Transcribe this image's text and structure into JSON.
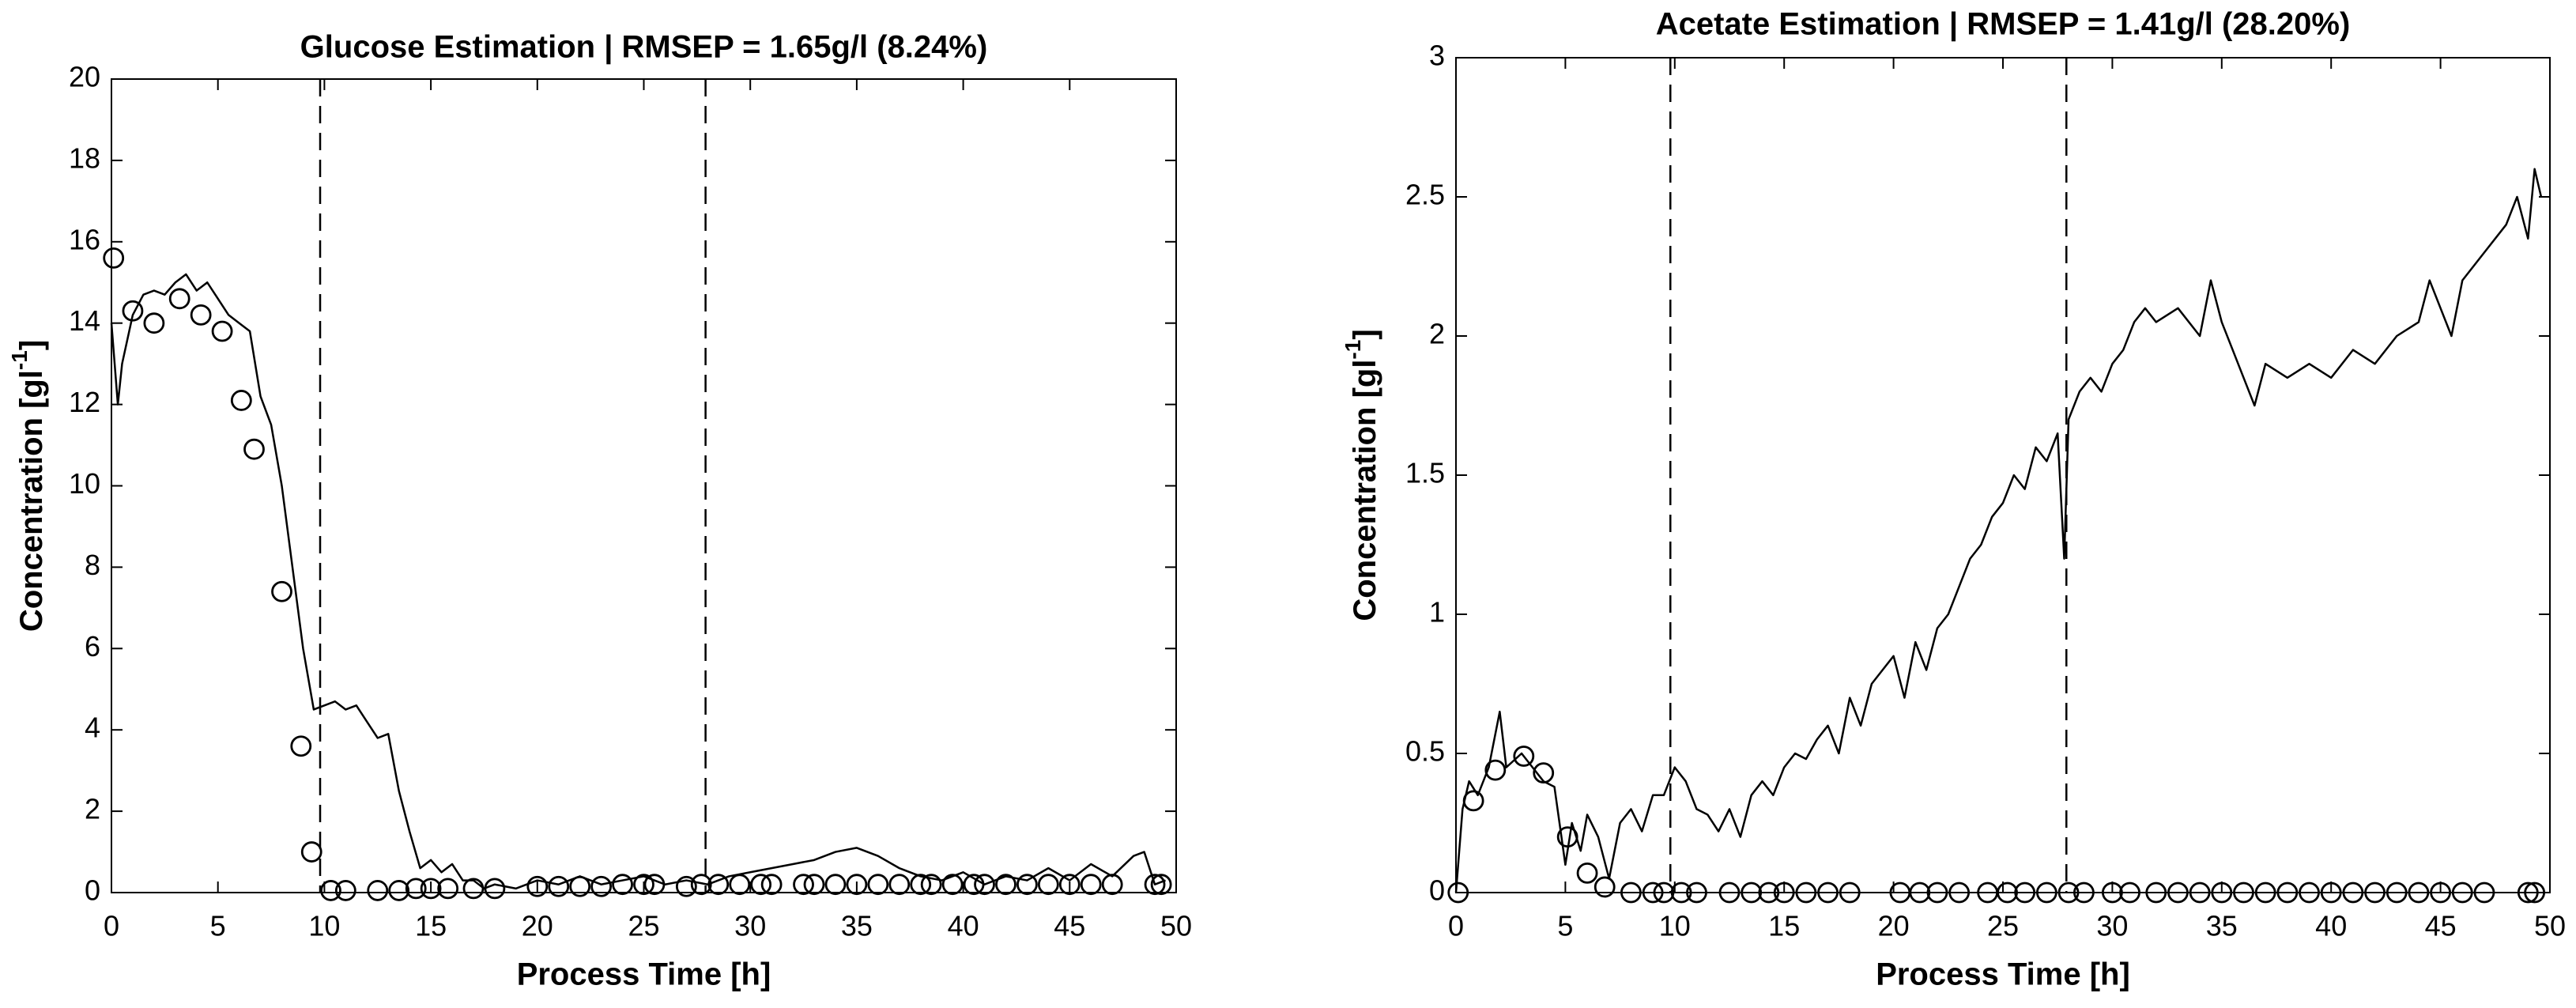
{
  "chart_data": [
    {
      "type": "line",
      "title": "Glucose Estimation | RMSEP = 1.65g/l (8.24%)",
      "xlabel": "Process Time [h]",
      "ylabel": [
        "Concentration [gl",
        "-1",
        "]"
      ],
      "xlim": [
        0,
        50
      ],
      "ylim": [
        0,
        20
      ],
      "xticks": [
        0,
        5,
        10,
        15,
        20,
        25,
        30,
        35,
        40,
        45,
        50
      ],
      "yticks": [
        0,
        2,
        4,
        6,
        8,
        10,
        12,
        14,
        16,
        18,
        20
      ],
      "vlines": [
        9.8,
        27.9
      ],
      "series": [
        {
          "type": "line",
          "color": "#000000",
          "x": [
            0,
            0.3,
            0.5,
            1,
            1.5,
            2,
            2.5,
            3,
            3.5,
            4,
            4.5,
            5,
            5.5,
            6,
            6.5,
            7,
            7.5,
            8,
            8.5,
            9,
            9.5,
            10,
            10.5,
            11,
            11.5,
            12,
            12.5,
            13,
            13.5,
            14,
            14.5,
            15,
            15.5,
            16,
            16.5,
            17,
            17.5,
            18,
            19,
            20,
            21,
            22,
            23,
            24,
            25,
            26,
            27,
            28,
            29,
            30,
            31,
            32,
            33,
            34,
            35,
            36,
            37,
            38,
            39,
            40,
            41,
            42,
            43,
            44,
            45,
            46,
            47,
            48,
            48.5,
            49,
            49.5
          ],
          "values": [
            14,
            12,
            13,
            14.2,
            14.7,
            14.8,
            14.7,
            15,
            15.2,
            14.8,
            15,
            14.6,
            14.2,
            14,
            13.8,
            12.2,
            11.5,
            10,
            8,
            6,
            4.5,
            4.6,
            4.7,
            4.5,
            4.6,
            4.2,
            3.8,
            3.9,
            2.5,
            1.5,
            0.6,
            0.8,
            0.5,
            0.7,
            0.3,
            0.3,
            0.1,
            0.2,
            0.1,
            0.3,
            0.2,
            0.4,
            0.2,
            0.3,
            0.4,
            0.2,
            0.3,
            0.2,
            0.4,
            0.5,
            0.6,
            0.7,
            0.8,
            1.0,
            1.1,
            0.9,
            0.6,
            0.4,
            0.3,
            0.5,
            0.2,
            0.4,
            0.3,
            0.6,
            0.3,
            0.7,
            0.4,
            0.9,
            1.0,
            0.2,
            0.3
          ]
        },
        {
          "type": "scatter",
          "color": "#000000",
          "x": [
            0.1,
            1,
            2,
            3.2,
            4.2,
            5.2,
            6.1,
            6.7,
            8,
            8.9,
            9.4,
            10.3,
            11,
            12.5,
            13.5,
            14.3,
            15,
            15.8,
            17,
            18,
            20,
            21,
            22,
            23,
            24,
            25,
            25.5,
            27,
            27.7,
            28.5,
            29.5,
            30.5,
            31,
            32.5,
            33,
            34,
            35,
            36,
            37,
            38,
            38.5,
            39.5,
            40.5,
            41,
            42,
            43,
            44,
            45,
            46,
            47,
            49,
            49.3
          ],
          "values": [
            15.6,
            14.3,
            14.0,
            14.6,
            14.2,
            13.8,
            12.1,
            10.9,
            7.4,
            3.6,
            1.0,
            0.05,
            0.05,
            0.05,
            0.05,
            0.1,
            0.1,
            0.1,
            0.1,
            0.1,
            0.15,
            0.15,
            0.15,
            0.15,
            0.2,
            0.2,
            0.2,
            0.15,
            0.2,
            0.2,
            0.2,
            0.2,
            0.2,
            0.2,
            0.2,
            0.2,
            0.2,
            0.2,
            0.2,
            0.2,
            0.2,
            0.2,
            0.2,
            0.2,
            0.2,
            0.2,
            0.2,
            0.2,
            0.2,
            0.2,
            0.2,
            0.2
          ]
        }
      ]
    },
    {
      "type": "line",
      "title": "Acetate Estimation | RMSEP = 1.41g/l (28.20%)",
      "xlabel": "Process Time [h]",
      "ylabel": [
        "Concentration [gl",
        "-1",
        "]"
      ],
      "xlim": [
        0,
        50
      ],
      "ylim": [
        0,
        3
      ],
      "xticks": [
        0,
        5,
        10,
        15,
        20,
        25,
        30,
        35,
        40,
        45,
        50
      ],
      "yticks": [
        0,
        0.5,
        1,
        1.5,
        2,
        2.5,
        3
      ],
      "vlines": [
        9.8,
        27.9
      ],
      "series": [
        {
          "type": "line",
          "color": "#000000",
          "x": [
            0,
            0.3,
            0.6,
            1,
            1.5,
            2,
            2.3,
            3,
            3.5,
            4,
            4.5,
            5,
            5.3,
            5.7,
            6,
            6.5,
            7,
            7.5,
            8,
            8.5,
            9,
            9.5,
            10,
            10.5,
            11,
            11.5,
            12,
            12.5,
            13,
            13.5,
            14,
            14.5,
            15,
            15.5,
            16,
            16.5,
            17,
            17.5,
            18,
            18.5,
            19,
            19.5,
            20,
            20.5,
            21,
            21.5,
            22,
            22.5,
            23,
            23.5,
            24,
            24.5,
            25,
            25.5,
            26,
            26.5,
            27,
            27.5,
            27.8,
            28,
            28.5,
            29,
            29.5,
            30,
            30.5,
            31,
            31.5,
            32,
            33,
            34,
            34.5,
            35,
            35.5,
            36,
            36.5,
            37,
            38,
            39,
            40,
            41,
            42,
            43,
            44,
            44.5,
            45,
            45.5,
            46,
            47,
            48,
            48.5,
            49,
            49.3,
            49.6
          ],
          "values": [
            0,
            0.3,
            0.4,
            0.35,
            0.45,
            0.65,
            0.45,
            0.5,
            0.45,
            0.4,
            0.38,
            0.1,
            0.25,
            0.15,
            0.28,
            0.2,
            0.05,
            0.25,
            0.3,
            0.22,
            0.35,
            0.35,
            0.45,
            0.4,
            0.3,
            0.28,
            0.22,
            0.3,
            0.2,
            0.35,
            0.4,
            0.35,
            0.45,
            0.5,
            0.48,
            0.55,
            0.6,
            0.5,
            0.7,
            0.6,
            0.75,
            0.8,
            0.85,
            0.7,
            0.9,
            0.8,
            0.95,
            1.0,
            1.1,
            1.2,
            1.25,
            1.35,
            1.4,
            1.5,
            1.45,
            1.6,
            1.55,
            1.65,
            1.2,
            1.7,
            1.8,
            1.85,
            1.8,
            1.9,
            1.95,
            2.05,
            2.1,
            2.05,
            2.1,
            2.0,
            2.2,
            2.05,
            1.95,
            1.85,
            1.75,
            1.9,
            1.85,
            1.9,
            1.85,
            1.95,
            1.9,
            2.0,
            2.05,
            2.2,
            2.1,
            2.0,
            2.2,
            2.3,
            2.4,
            2.5,
            2.35,
            2.6,
            2.5
          ]
        },
        {
          "type": "scatter",
          "color": "#000000",
          "x": [
            0.1,
            0.8,
            1.8,
            3.1,
            4,
            5.1,
            6,
            6.8,
            8,
            9,
            9.5,
            10.3,
            11,
            12.5,
            13.5,
            14.3,
            15,
            16,
            17,
            18,
            20.3,
            21.2,
            22,
            23,
            24.3,
            25.2,
            26,
            27,
            28,
            28.7,
            30,
            30.8,
            32,
            33,
            34,
            35,
            36,
            37,
            38,
            39,
            40,
            41,
            42,
            43,
            44,
            45,
            46,
            47,
            49,
            49.3
          ],
          "values": [
            0,
            0.33,
            0.44,
            0.49,
            0.43,
            0.2,
            0.07,
            0.02,
            0,
            0,
            0,
            0,
            0,
            0,
            0,
            0,
            0,
            0,
            0,
            0,
            0,
            0,
            0,
            0,
            0,
            0,
            0,
            0,
            0,
            0,
            0,
            0,
            0,
            0,
            0,
            0,
            0,
            0,
            0,
            0,
            0,
            0,
            0,
            0,
            0,
            0,
            0,
            0,
            0,
            0
          ]
        }
      ]
    }
  ]
}
